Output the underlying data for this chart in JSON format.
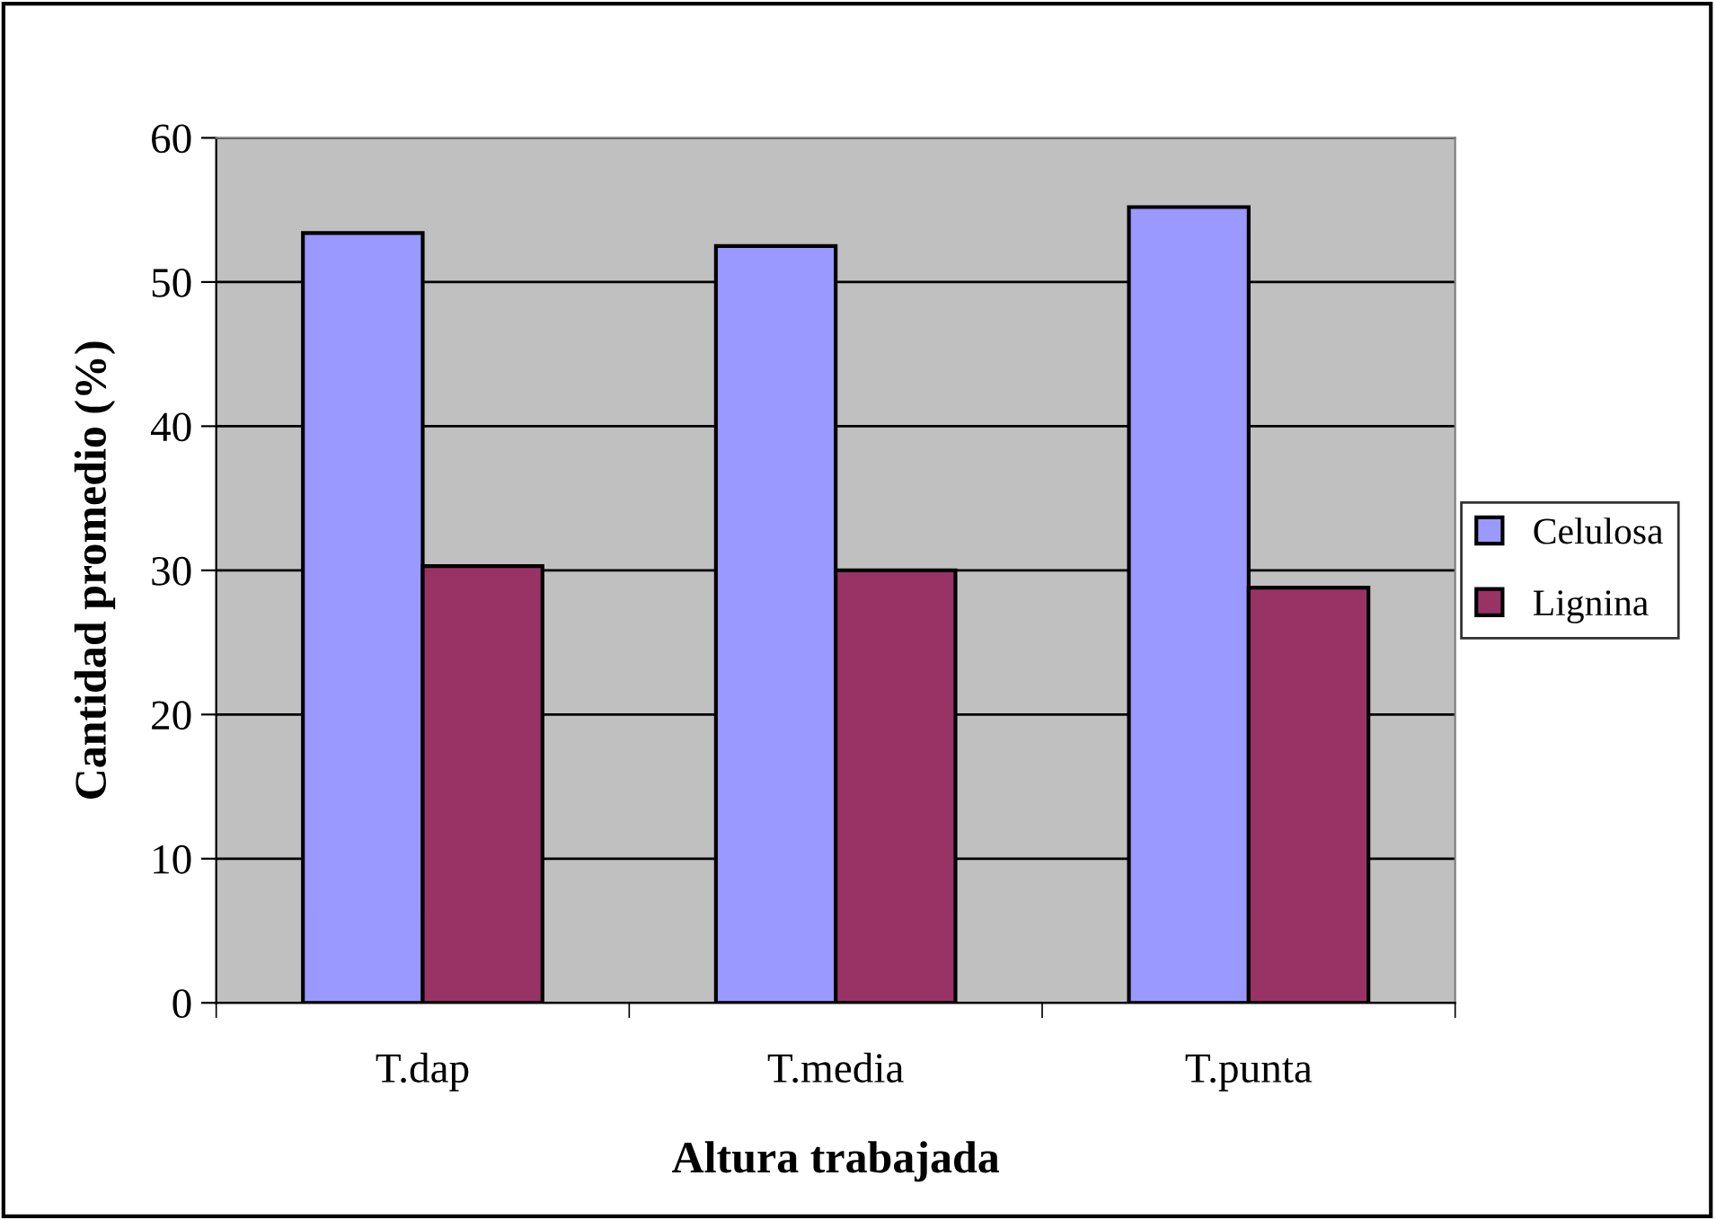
{
  "chart_data": {
    "type": "bar",
    "xlabel": "Altura trabajada",
    "ylabel": "Cantidad promedio (%)",
    "categories": [
      "T.dap",
      "T.media",
      "T.punta"
    ],
    "series": [
      {
        "name": "Celulosa",
        "color": "#9999ff",
        "values": [
          53.4,
          52.5,
          55.2
        ]
      },
      {
        "name": "Lignina",
        "color": "#993366",
        "values": [
          30.3,
          30.0,
          28.8
        ]
      }
    ],
    "ylim": [
      0,
      60
    ],
    "yticks": [
      0,
      10,
      20,
      30,
      40,
      50,
      60
    ],
    "grid": "y",
    "legend": "right"
  }
}
